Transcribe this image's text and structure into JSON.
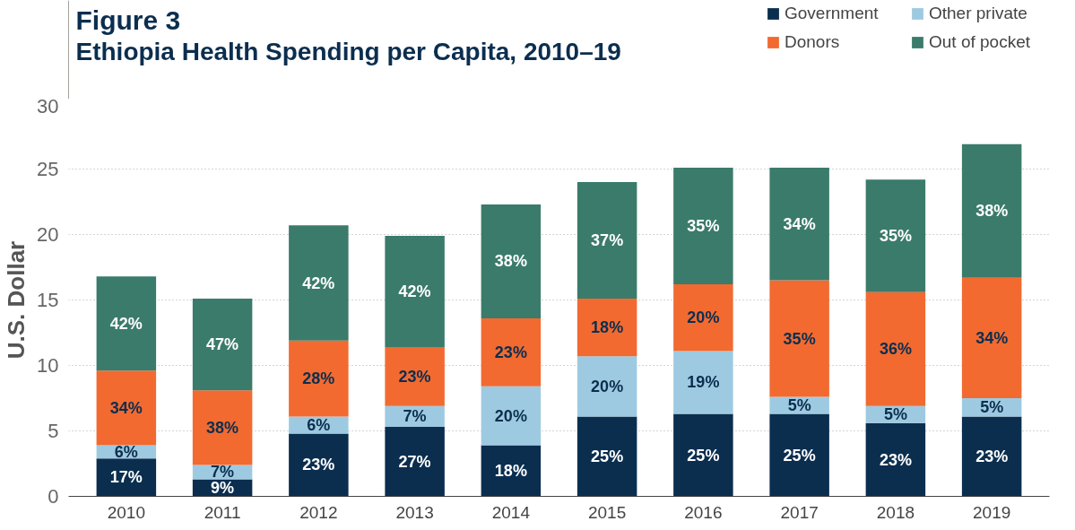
{
  "chart_data": {
    "type": "bar",
    "stacked": true,
    "title": "Figure 3",
    "subtitle": "Ethiopia Health Spending per Capita, 2010–19",
    "ylabel": "U.S. Dollar",
    "categories": [
      "2010",
      "2011",
      "2012",
      "2013",
      "2014",
      "2015",
      "2016",
      "2017",
      "2018",
      "2019"
    ],
    "ylim": [
      0,
      30
    ],
    "yticks": [
      0,
      5,
      10,
      15,
      20,
      25,
      30
    ],
    "grid": "y",
    "legend": "top right",
    "series": [
      {
        "name": "Government",
        "color": "#0b2e4f",
        "values": [
          2.9,
          1.3,
          4.8,
          5.3,
          3.9,
          6.1,
          6.3,
          6.3,
          5.6,
          6.1
        ]
      },
      {
        "name": "Other private",
        "color": "#9ecae1",
        "values": [
          1.0,
          1.1,
          1.3,
          1.6,
          4.5,
          4.6,
          4.8,
          1.3,
          1.3,
          1.4
        ]
      },
      {
        "name": "Donors",
        "color": "#f26a30",
        "values": [
          5.7,
          5.7,
          5.8,
          4.5,
          5.2,
          4.4,
          5.1,
          8.9,
          8.7,
          9.2
        ]
      },
      {
        "name": "Out of pocket",
        "color": "#3b7b6b",
        "values": [
          7.2,
          7.0,
          8.8,
          8.5,
          8.7,
          8.9,
          8.9,
          8.6,
          8.6,
          10.2
        ]
      }
    ],
    "annotations": [
      "17%",
      "6%",
      "34%",
      "42%",
      "9%",
      "7%",
      "38%",
      "47%",
      "23%",
      "6%",
      "28%",
      "42%",
      "27%",
      "7%",
      "23%",
      "42%",
      "18%",
      "20%",
      "23%",
      "38%",
      "25%",
      "20%",
      "18%",
      "37%",
      "25%",
      "19%",
      "20%",
      "35%",
      "25%",
      "5%",
      "35%",
      "34%",
      "23%",
      "5%",
      "36%",
      "35%",
      "23%",
      "5%",
      "34%",
      "38%"
    ]
  }
}
